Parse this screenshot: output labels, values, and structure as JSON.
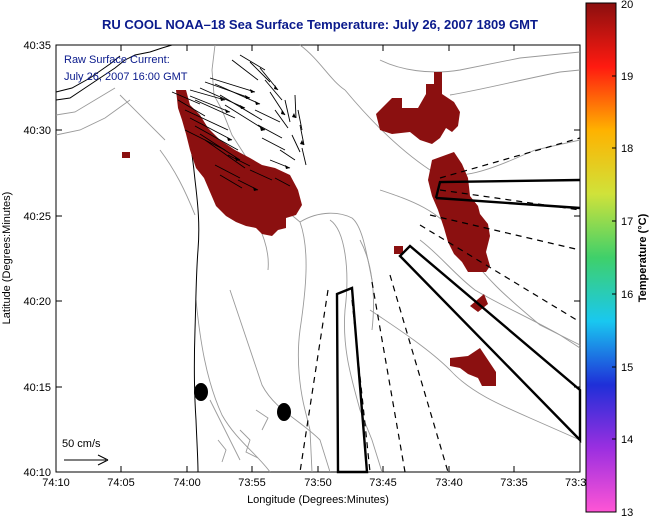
{
  "title": "RU COOL  NOAA–18  Sea Surface Temperature:  July 26, 2007 1809 GMT",
  "annotation": {
    "line1": "Raw Surface Current:",
    "line2": "July 26, 2007 16:00 GMT"
  },
  "scale_label": "50 cm/s",
  "axes": {
    "xlabel": "Longitude (Degrees:Minutes)",
    "ylabel": "Latitude (Degrees:Minutes)",
    "x_ticks": [
      "74:10",
      "74:05",
      "74:00",
      "73:55",
      "73:50",
      "73:45",
      "73:40",
      "73:35",
      "73:3"
    ],
    "y_ticks": [
      "40:35",
      "40:30",
      "40:25",
      "40:20",
      "40:15",
      "40:10"
    ]
  },
  "colorbar": {
    "label": "Temperature (°C)",
    "ticks": [
      "20",
      "19",
      "18",
      "17",
      "16",
      "15",
      "14",
      "13"
    ],
    "min": 13,
    "max": 20,
    "colors": [
      "#ff55d5",
      "#9b2fe0",
      "#1f2fd8",
      "#19c8f0",
      "#3fd06a",
      "#d0e23a",
      "#ffb200",
      "#ff1a10",
      "#8b0f0f"
    ]
  },
  "colors": {
    "sst_patch": "#8b1010",
    "title": "#0a1a8c",
    "contour": "#9a9a9a"
  }
}
